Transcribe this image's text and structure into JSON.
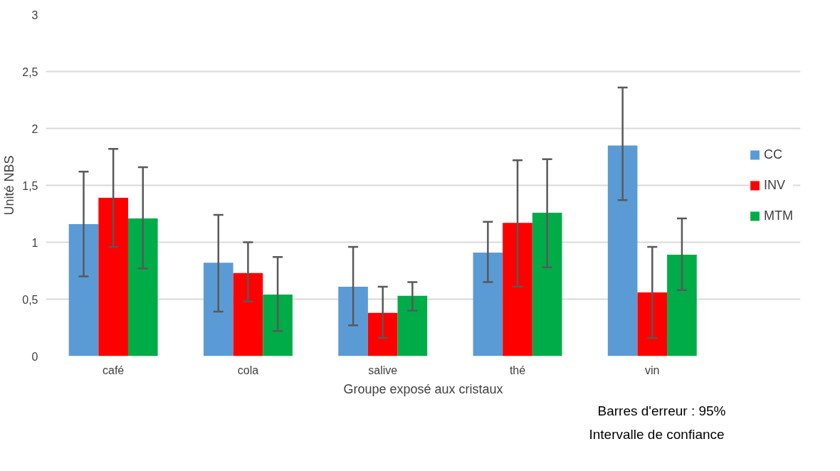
{
  "chart_data": {
    "type": "bar",
    "xlabel": "Groupe exposé aux cristaux",
    "ylabel": "Unité NBS",
    "categories": [
      "café",
      "cola",
      "salive",
      "thé",
      "vin"
    ],
    "series": [
      {
        "name": "CC",
        "color": "#5b9bd5",
        "values": [
          1.16,
          0.82,
          0.61,
          0.91,
          1.85
        ],
        "errors": [
          [
            0.7,
            1.62
          ],
          [
            0.39,
            1.24
          ],
          [
            0.27,
            0.96
          ],
          [
            0.65,
            1.18
          ],
          [
            1.37,
            2.36
          ]
        ]
      },
      {
        "name": "INV",
        "color": "#ff0000",
        "values": [
          1.39,
          0.73,
          0.38,
          1.17,
          0.56
        ],
        "errors": [
          [
            0.96,
            1.82
          ],
          [
            0.48,
            1.0
          ],
          [
            0.16,
            0.61
          ],
          [
            0.61,
            1.72
          ],
          [
            0.16,
            0.96
          ]
        ]
      },
      {
        "name": "MTM",
        "color": "#00ac48",
        "values": [
          1.21,
          0.54,
          0.53,
          1.26,
          0.89
        ],
        "errors": [
          [
            0.77,
            1.66
          ],
          [
            0.22,
            0.87
          ],
          [
            0.4,
            0.65
          ],
          [
            0.78,
            1.73
          ],
          [
            0.58,
            1.21
          ]
        ]
      }
    ],
    "ylim": [
      0,
      3
    ],
    "yticks": [
      {
        "value": 0,
        "label": "0"
      },
      {
        "value": 0.5,
        "label": "0,5"
      },
      {
        "value": 1,
        "label": "1"
      },
      {
        "value": 1.5,
        "label": "1,5"
      },
      {
        "value": 2,
        "label": "2"
      },
      {
        "value": 2.5,
        "label": "2,5"
      },
      {
        "value": 3,
        "label": "3"
      }
    ],
    "grid": "y",
    "legend": "right",
    "annotations": [
      "Barres d'erreur : 95%\nIntervalle de confiance"
    ]
  }
}
